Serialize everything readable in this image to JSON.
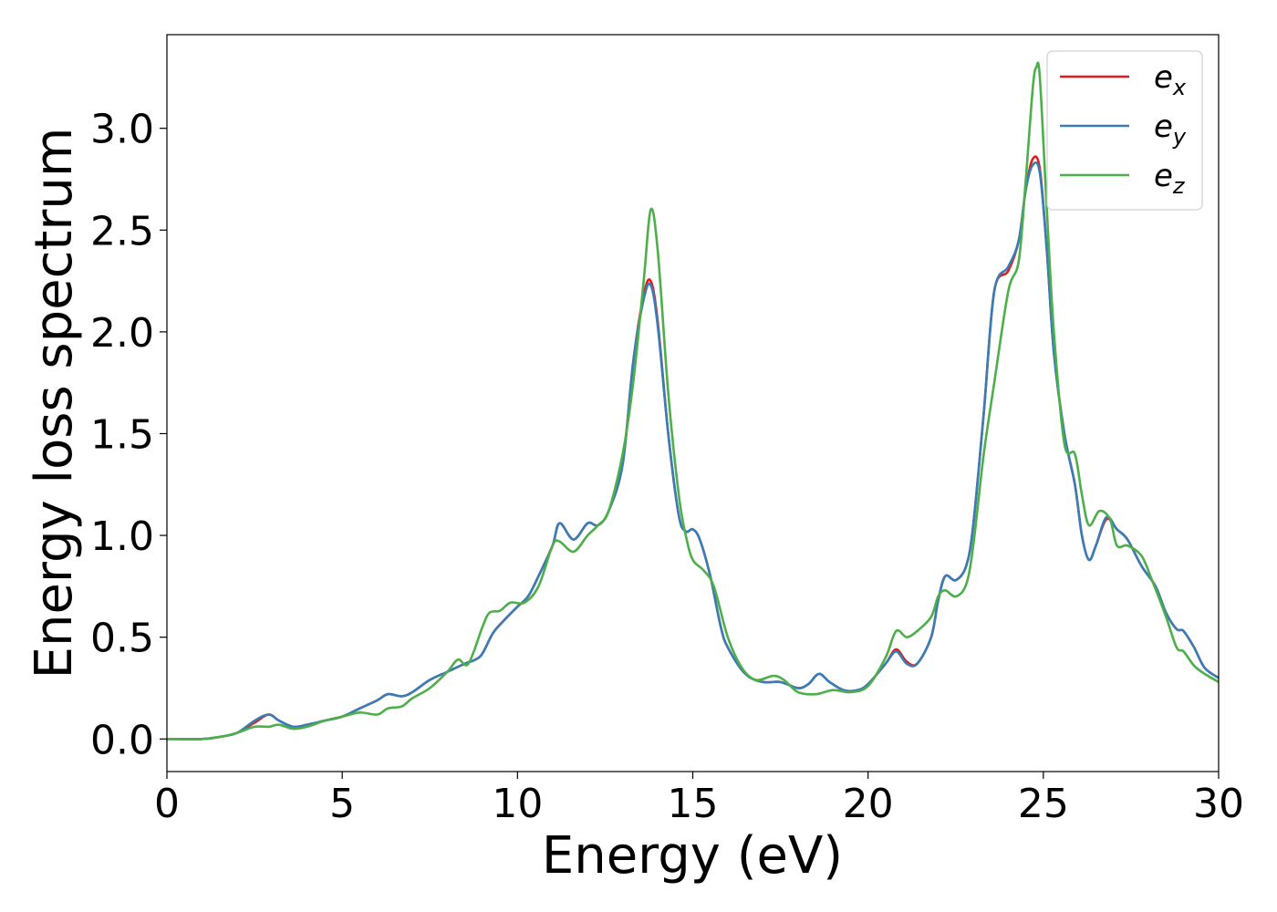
{
  "chart_data": {
    "type": "line",
    "xlabel": "Energy (eV)",
    "ylabel": "Energy loss spectrum",
    "xlim": [
      0,
      30
    ],
    "ylim": [
      -0.16,
      3.46
    ],
    "xticks": [
      0,
      5,
      10,
      15,
      20,
      25,
      30
    ],
    "xtick_labels": [
      "0",
      "5",
      "10",
      "15",
      "20",
      "25",
      "30"
    ],
    "yticks": [
      0.0,
      0.5,
      1.0,
      1.5,
      2.0,
      2.5,
      3.0
    ],
    "ytick_labels": [
      "0.0",
      "0.5",
      "1.0",
      "1.5",
      "2.0",
      "2.5",
      "3.0"
    ],
    "grid": false,
    "legend_position": "top-right",
    "series": [
      {
        "name": "e_x",
        "legend_main": "e",
        "legend_sub": "x",
        "color": "#e41a1c",
        "x": [
          0,
          1,
          1.5,
          2,
          2.5,
          2.9,
          3.2,
          3.6,
          4,
          4.5,
          5,
          5.5,
          6,
          6.3,
          6.7,
          7,
          7.5,
          8,
          8.5,
          8.8,
          9,
          9.3,
          9.6,
          10,
          10.3,
          10.6,
          11,
          11.2,
          11.6,
          12,
          12.3,
          12.6,
          13,
          13.3,
          13.6,
          13.8,
          14,
          14.3,
          14.6,
          14.8,
          15,
          15.2,
          15.5,
          15.8,
          16,
          16.5,
          17,
          17.5,
          18,
          18.3,
          18.6,
          18.9,
          19.3,
          19.7,
          20,
          20.5,
          20.8,
          21.1,
          21.4,
          21.8,
          22,
          22.2,
          22.5,
          22.8,
          23,
          23.3,
          23.6,
          24,
          24.3,
          24.5,
          24.7,
          24.9,
          25.1,
          25.3,
          25.6,
          25.9,
          26.1,
          26.3,
          26.5,
          26.8,
          27.1,
          27.4,
          27.8,
          28.2,
          28.5,
          28.8,
          29,
          29.3,
          29.6,
          30
        ],
        "y": [
          0,
          0,
          0.01,
          0.03,
          0.08,
          0.12,
          0.09,
          0.06,
          0.07,
          0.09,
          0.11,
          0.15,
          0.19,
          0.22,
          0.21,
          0.23,
          0.29,
          0.33,
          0.37,
          0.39,
          0.42,
          0.52,
          0.58,
          0.65,
          0.7,
          0.8,
          0.95,
          1.06,
          0.98,
          1.06,
          1.05,
          1.12,
          1.35,
          1.85,
          2.18,
          2.25,
          2.05,
          1.5,
          1.1,
          1.02,
          1.03,
          0.98,
          0.8,
          0.55,
          0.45,
          0.32,
          0.28,
          0.28,
          0.25,
          0.27,
          0.32,
          0.28,
          0.24,
          0.24,
          0.27,
          0.37,
          0.44,
          0.38,
          0.37,
          0.5,
          0.68,
          0.8,
          0.78,
          0.85,
          1.05,
          1.6,
          2.2,
          2.3,
          2.45,
          2.7,
          2.85,
          2.8,
          2.4,
          1.9,
          1.5,
          1.25,
          1.0,
          0.88,
          0.95,
          1.08,
          1.03,
          0.98,
          0.85,
          0.75,
          0.62,
          0.54,
          0.53,
          0.45,
          0.35,
          0.3
        ]
      },
      {
        "name": "e_y",
        "legend_main": "e",
        "legend_sub": "y",
        "color": "#377eb8",
        "x": [
          0,
          1,
          1.5,
          2,
          2.5,
          2.9,
          3.2,
          3.6,
          4,
          4.5,
          5,
          5.5,
          6,
          6.3,
          6.7,
          7,
          7.5,
          8,
          8.5,
          8.8,
          9,
          9.3,
          9.6,
          10,
          10.3,
          10.6,
          11,
          11.2,
          11.6,
          12,
          12.3,
          12.6,
          13,
          13.3,
          13.6,
          13.8,
          14,
          14.3,
          14.6,
          14.8,
          15,
          15.2,
          15.5,
          15.8,
          16,
          16.5,
          17,
          17.5,
          18,
          18.3,
          18.6,
          18.9,
          19.3,
          19.7,
          20,
          20.5,
          20.8,
          21.1,
          21.4,
          21.8,
          22,
          22.2,
          22.5,
          22.8,
          23,
          23.3,
          23.6,
          24,
          24.3,
          24.5,
          24.7,
          24.9,
          25.1,
          25.3,
          25.6,
          25.9,
          26.1,
          26.3,
          26.5,
          26.8,
          27.1,
          27.4,
          27.8,
          28.2,
          28.5,
          28.8,
          29,
          29.3,
          29.6,
          30
        ],
        "y": [
          0,
          0,
          0.01,
          0.03,
          0.09,
          0.12,
          0.09,
          0.06,
          0.07,
          0.09,
          0.11,
          0.15,
          0.19,
          0.22,
          0.21,
          0.23,
          0.29,
          0.33,
          0.37,
          0.39,
          0.42,
          0.52,
          0.58,
          0.65,
          0.7,
          0.8,
          0.95,
          1.06,
          0.98,
          1.06,
          1.05,
          1.12,
          1.35,
          1.85,
          2.16,
          2.23,
          2.03,
          1.5,
          1.1,
          1.02,
          1.03,
          0.98,
          0.8,
          0.55,
          0.45,
          0.32,
          0.28,
          0.28,
          0.25,
          0.27,
          0.32,
          0.28,
          0.24,
          0.24,
          0.27,
          0.37,
          0.43,
          0.37,
          0.37,
          0.5,
          0.68,
          0.8,
          0.78,
          0.85,
          1.05,
          1.6,
          2.2,
          2.32,
          2.45,
          2.7,
          2.82,
          2.78,
          2.4,
          1.9,
          1.5,
          1.25,
          1.0,
          0.88,
          0.95,
          1.09,
          1.03,
          0.98,
          0.85,
          0.75,
          0.62,
          0.54,
          0.53,
          0.45,
          0.35,
          0.3
        ]
      },
      {
        "name": "e_z",
        "legend_main": "e",
        "legend_sub": "z",
        "color": "#4daf4a",
        "x": [
          0,
          1,
          1.5,
          2,
          2.5,
          2.9,
          3.2,
          3.6,
          4,
          4.5,
          5,
          5.5,
          6,
          6.3,
          6.7,
          7,
          7.5,
          8,
          8.3,
          8.6,
          9,
          9.2,
          9.5,
          9.8,
          10.2,
          10.6,
          11,
          11.2,
          11.6,
          12,
          12.3,
          12.6,
          13,
          13.3,
          13.6,
          13.8,
          14,
          14.3,
          14.6,
          14.8,
          15,
          15.3,
          15.6,
          16,
          16.4,
          16.8,
          17.3,
          17.6,
          18,
          18.5,
          19,
          19.5,
          20,
          20.5,
          20.8,
          21.1,
          21.4,
          21.8,
          22,
          22.2,
          22.5,
          22.8,
          23,
          23.3,
          23.6,
          24,
          24.3,
          24.5,
          24.7,
          24.8,
          24.9,
          25.1,
          25.3,
          25.6,
          25.9,
          26.1,
          26.3,
          26.6,
          26.9,
          27.1,
          27.4,
          27.8,
          28.1,
          28.5,
          28.8,
          29,
          29.3,
          29.6,
          30
        ],
        "y": [
          0,
          0,
          0.01,
          0.03,
          0.06,
          0.06,
          0.07,
          0.05,
          0.06,
          0.09,
          0.11,
          0.13,
          0.12,
          0.15,
          0.16,
          0.2,
          0.25,
          0.33,
          0.39,
          0.37,
          0.55,
          0.62,
          0.63,
          0.67,
          0.67,
          0.75,
          0.95,
          0.97,
          0.92,
          1.0,
          1.05,
          1.12,
          1.4,
          1.75,
          2.25,
          2.6,
          2.4,
          1.7,
          1.2,
          1.0,
          0.88,
          0.83,
          0.75,
          0.5,
          0.35,
          0.29,
          0.31,
          0.29,
          0.23,
          0.22,
          0.24,
          0.23,
          0.26,
          0.4,
          0.53,
          0.5,
          0.53,
          0.6,
          0.7,
          0.73,
          0.7,
          0.76,
          0.95,
          1.4,
          1.75,
          2.2,
          2.35,
          2.75,
          3.2,
          3.3,
          3.25,
          2.6,
          2.0,
          1.45,
          1.4,
          1.2,
          1.05,
          1.12,
          1.08,
          0.95,
          0.95,
          0.9,
          0.78,
          0.6,
          0.45,
          0.43,
          0.36,
          0.32,
          0.28
        ]
      }
    ]
  }
}
